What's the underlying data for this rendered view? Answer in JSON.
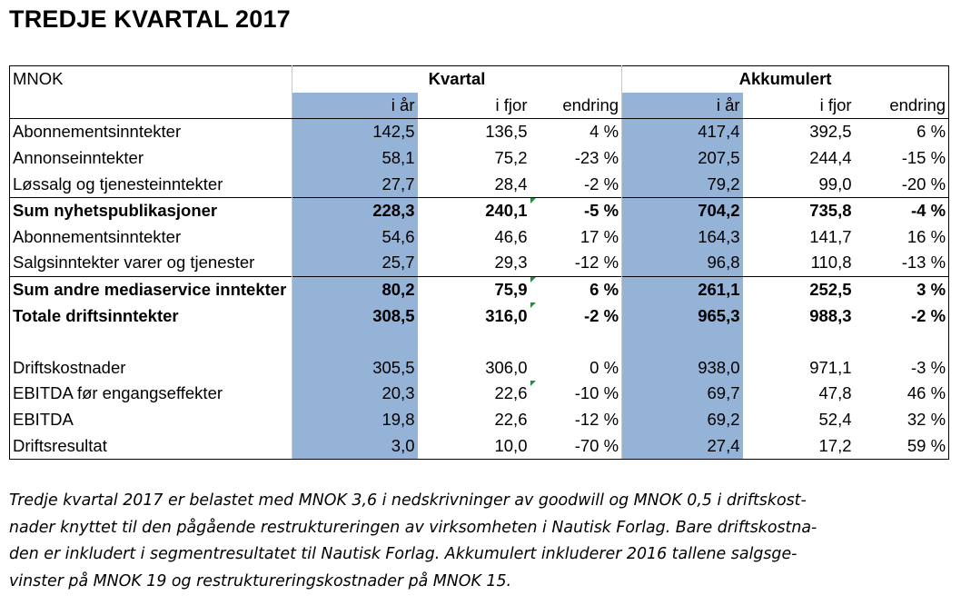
{
  "title": "TREDJE KVARTAL 2017",
  "table": {
    "unit_label": "MNOK",
    "group_quarter": "Kvartal",
    "group_accum": "Akkumulert",
    "columns": [
      "i år",
      "i fjor",
      "endring",
      "i år",
      "i fjor",
      "endring"
    ],
    "rows": [
      {
        "label": "Abonnementsinntekter",
        "values": [
          "142,5",
          "136,5",
          "4 %",
          "417,4",
          "392,5",
          "6 %"
        ],
        "bold": false
      },
      {
        "label": "Annonseinntekter",
        "values": [
          "58,1",
          "75,2",
          "-23 %",
          "207,5",
          "244,4",
          "-15 %"
        ],
        "bold": false
      },
      {
        "label": "Løssalg og tjenesteinntekter",
        "values": [
          "27,7",
          "28,4",
          "-2 %",
          "79,2",
          "99,0",
          "-20 %"
        ],
        "bold": false
      },
      {
        "label": "Sum nyhetspublikasjoner",
        "values": [
          "228,3",
          "240,1",
          "-5 %",
          "704,2",
          "735,8",
          "-4 %"
        ],
        "bold": true
      },
      {
        "label": "Abonnementsinntekter",
        "values": [
          "54,6",
          "46,6",
          "17 %",
          "164,3",
          "141,7",
          "16 %"
        ],
        "bold": false
      },
      {
        "label": "Salgsinntekter varer og tjenester",
        "values": [
          "25,7",
          "29,3",
          "-12 %",
          "96,8",
          "110,8",
          "-13 %"
        ],
        "bold": false
      },
      {
        "label": "Sum andre mediaservice inntekter",
        "values": [
          "80,2",
          "75,9",
          "6 %",
          "261,1",
          "252,5",
          "3 %"
        ],
        "bold": true
      },
      {
        "label": "Totale driftsinntekter",
        "values": [
          "308,5",
          "316,0",
          "-2 %",
          "965,3",
          "988,3",
          "-2 %"
        ],
        "bold": true
      },
      {
        "label": "",
        "values": [
          "",
          "",
          "",
          "",
          "",
          ""
        ],
        "bold": false
      },
      {
        "label": "Driftskostnader",
        "values": [
          "305,5",
          "306,0",
          "0 %",
          "938,0",
          "971,1",
          "-3 %"
        ],
        "bold": false
      },
      {
        "label": "EBITDA før engangseffekter",
        "values": [
          "20,3",
          "22,6",
          "-10 %",
          "69,7",
          "47,8",
          "46 %"
        ],
        "bold": false
      },
      {
        "label": "EBITDA",
        "values": [
          "19,8",
          "22,6",
          "-12 %",
          "69,2",
          "52,4",
          "32 %"
        ],
        "bold": false
      },
      {
        "label": "Driftsresultat",
        "values": [
          "3,0",
          "10,0",
          "-70 %",
          "27,4",
          "17,2",
          "59 %"
        ],
        "bold": false
      }
    ]
  },
  "note_lines": [
    "Tredje kvartal 2017 er belastet med MNOK 3,6 i nedskrivninger av goodwill og MNOK 0,5 i driftskost-",
    "nader knyttet til den pågående restruktureringen av virksomheten i Nautisk Forlag. Bare driftskostna-",
    "den er inkludert i segmentresultatet til Nautisk Forlag. Akkumulert inkluderer 2016 tallene salgsge-",
    "vinster på MNOK 19 og restruktureringskostnader på MNOK 15."
  ],
  "colors": {
    "highlight_column": "#95b3d7",
    "cell_flag": "#1f8f3a"
  }
}
